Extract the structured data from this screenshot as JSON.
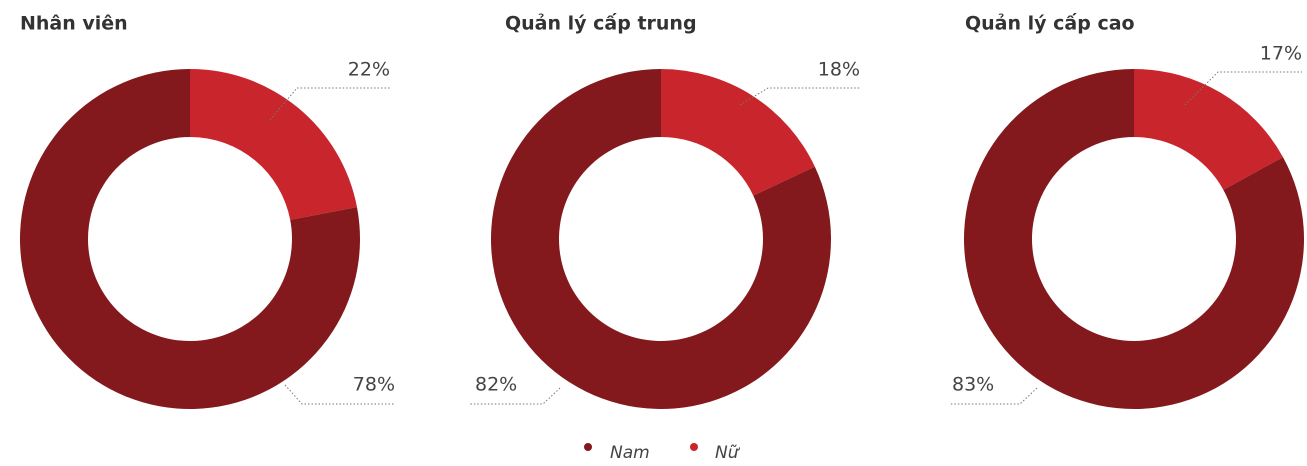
{
  "chart_data": [
    {
      "type": "pie",
      "title": "Nhân viên",
      "categories": [
        "Nam",
        "Nữ"
      ],
      "values": [
        78,
        22
      ],
      "value_labels": [
        "78%",
        "22%"
      ],
      "colors": [
        "#83191c",
        "#c9252c"
      ],
      "donut": true
    },
    {
      "type": "pie",
      "title": "Quản lý cấp trung",
      "categories": [
        "Nam",
        "Nữ"
      ],
      "values": [
        82,
        18
      ],
      "value_labels": [
        "82%",
        "18%"
      ],
      "colors": [
        "#83191c",
        "#c9252c"
      ],
      "donut": true
    },
    {
      "type": "pie",
      "title": "Quản lý cấp cao",
      "categories": [
        "Nam",
        "Nữ"
      ],
      "values": [
        83,
        17
      ],
      "value_labels": [
        "83%",
        "17%"
      ],
      "colors": [
        "#83191c",
        "#c9252c"
      ],
      "donut": true
    }
  ]
}
